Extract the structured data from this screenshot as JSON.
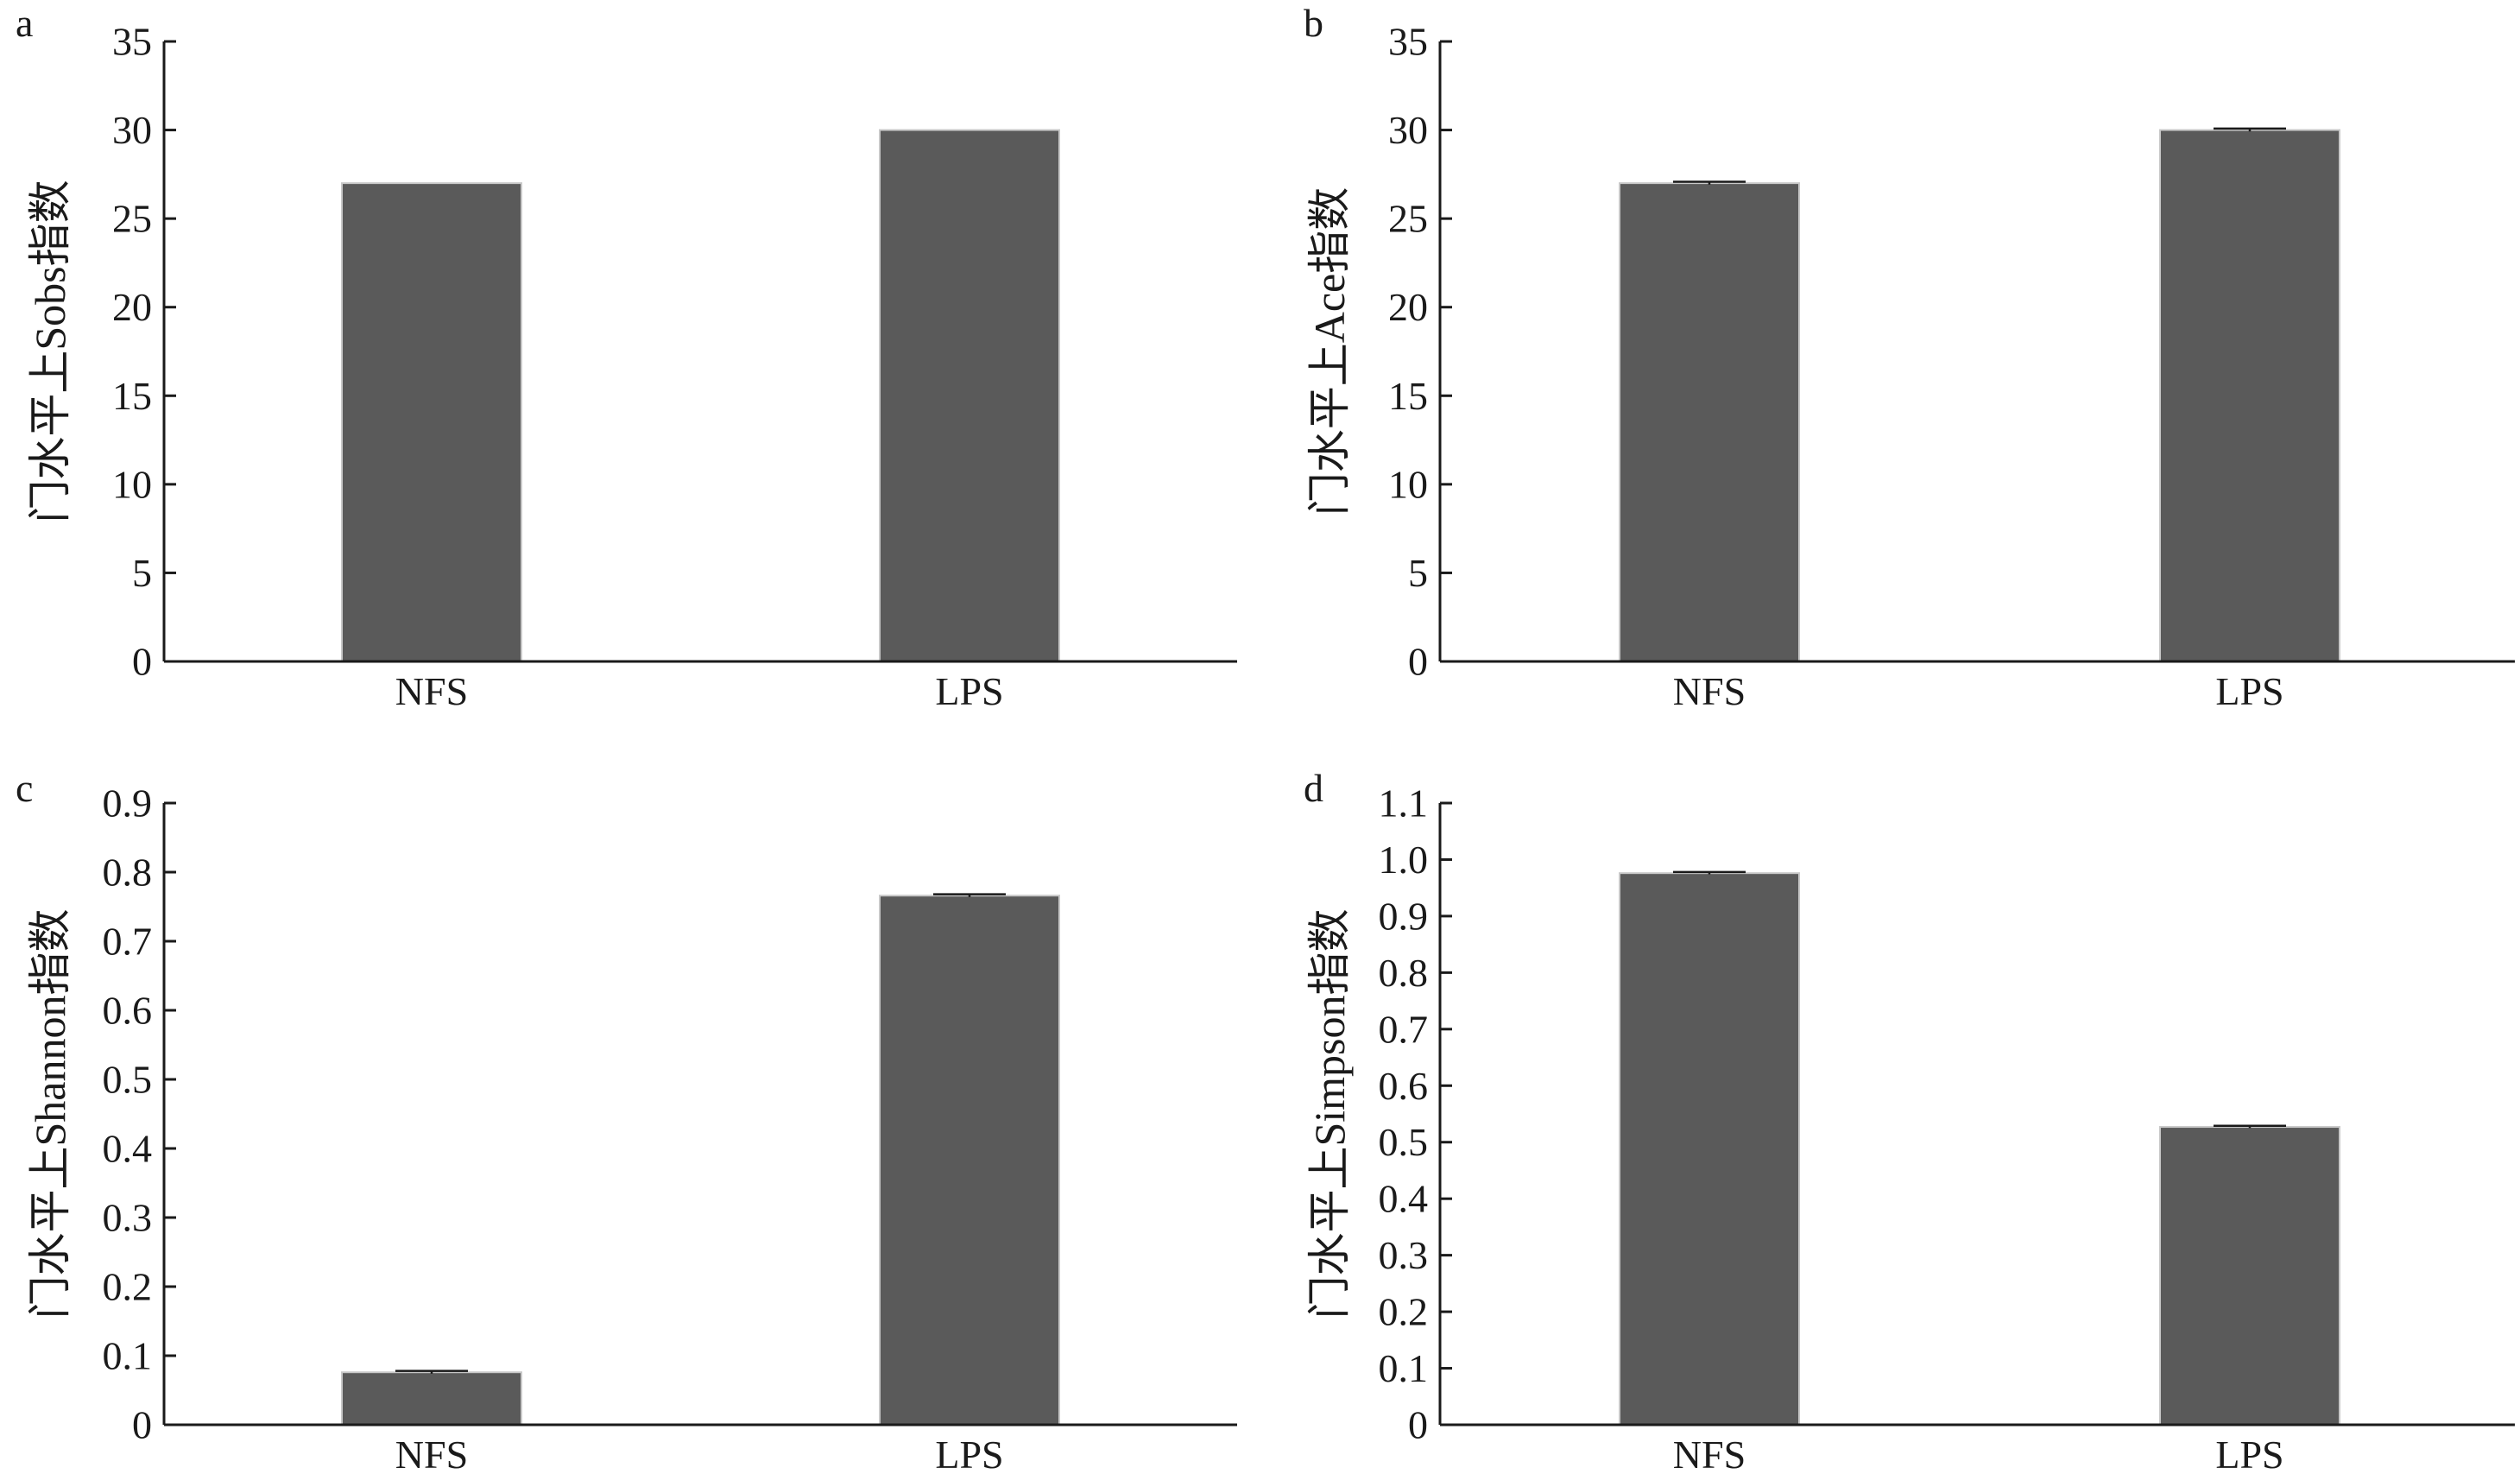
{
  "chart_data": [
    {
      "panel": "a",
      "type": "bar",
      "categories": [
        "NFS",
        "LPS"
      ],
      "values": [
        27,
        30
      ],
      "errors": [
        0,
        0
      ],
      "ylabel": "门水平上Sobs指数",
      "ylim": [
        0,
        35
      ],
      "yticks": [
        "0",
        "5",
        "10",
        "15",
        "20",
        "25",
        "30",
        "35"
      ],
      "ytick_values": [
        0,
        5,
        10,
        15,
        20,
        25,
        30,
        35
      ],
      "bar_color": "#5a5a5a",
      "grid": false
    },
    {
      "panel": "b",
      "type": "bar",
      "categories": [
        "NFS",
        "LPS"
      ],
      "values": [
        27,
        30
      ],
      "errors": [
        0.08,
        0.08
      ],
      "ylabel": "门水平上Ace指数",
      "ylim": [
        0,
        35
      ],
      "yticks": [
        "0",
        "5",
        "10",
        "15",
        "20",
        "25",
        "30",
        "35"
      ],
      "ytick_values": [
        0,
        5,
        10,
        15,
        20,
        25,
        30,
        35
      ],
      "bar_color": "#5a5a5a",
      "grid": false
    },
    {
      "panel": "c",
      "type": "bar",
      "categories": [
        "NFS",
        "LPS"
      ],
      "values": [
        0.076,
        0.766
      ],
      "errors": [
        0.002,
        0.002
      ],
      "ylabel": "门水平上Shannon指数",
      "ylim": [
        0,
        0.9
      ],
      "yticks": [
        "0",
        "0.1",
        "0.2",
        "0.3",
        "0.4",
        "0.5",
        "0.6",
        "0.7",
        "0.8",
        "0.9"
      ],
      "ytick_values": [
        0,
        0.1,
        0.2,
        0.3,
        0.4,
        0.5,
        0.6,
        0.7,
        0.8,
        0.9
      ],
      "bar_color": "#5a5a5a",
      "grid": false
    },
    {
      "panel": "d",
      "type": "bar",
      "categories": [
        "NFS",
        "LPS"
      ],
      "values": [
        0.976,
        0.527
      ],
      "errors": [
        0.002,
        0.002
      ],
      "ylabel": "门水平上Simpson指数",
      "ylim": [
        0,
        1.1
      ],
      "yticks": [
        "0",
        "0.1",
        "0.2",
        "0.3",
        "0.4",
        "0.5",
        "0.6",
        "0.7",
        "0.8",
        "0.9",
        "1.0",
        "1.1"
      ],
      "ytick_values": [
        0,
        0.1,
        0.2,
        0.3,
        0.4,
        0.5,
        0.6,
        0.7,
        0.8,
        0.9,
        1.0,
        1.1
      ],
      "bar_color": "#5a5a5a",
      "grid": false
    }
  ]
}
